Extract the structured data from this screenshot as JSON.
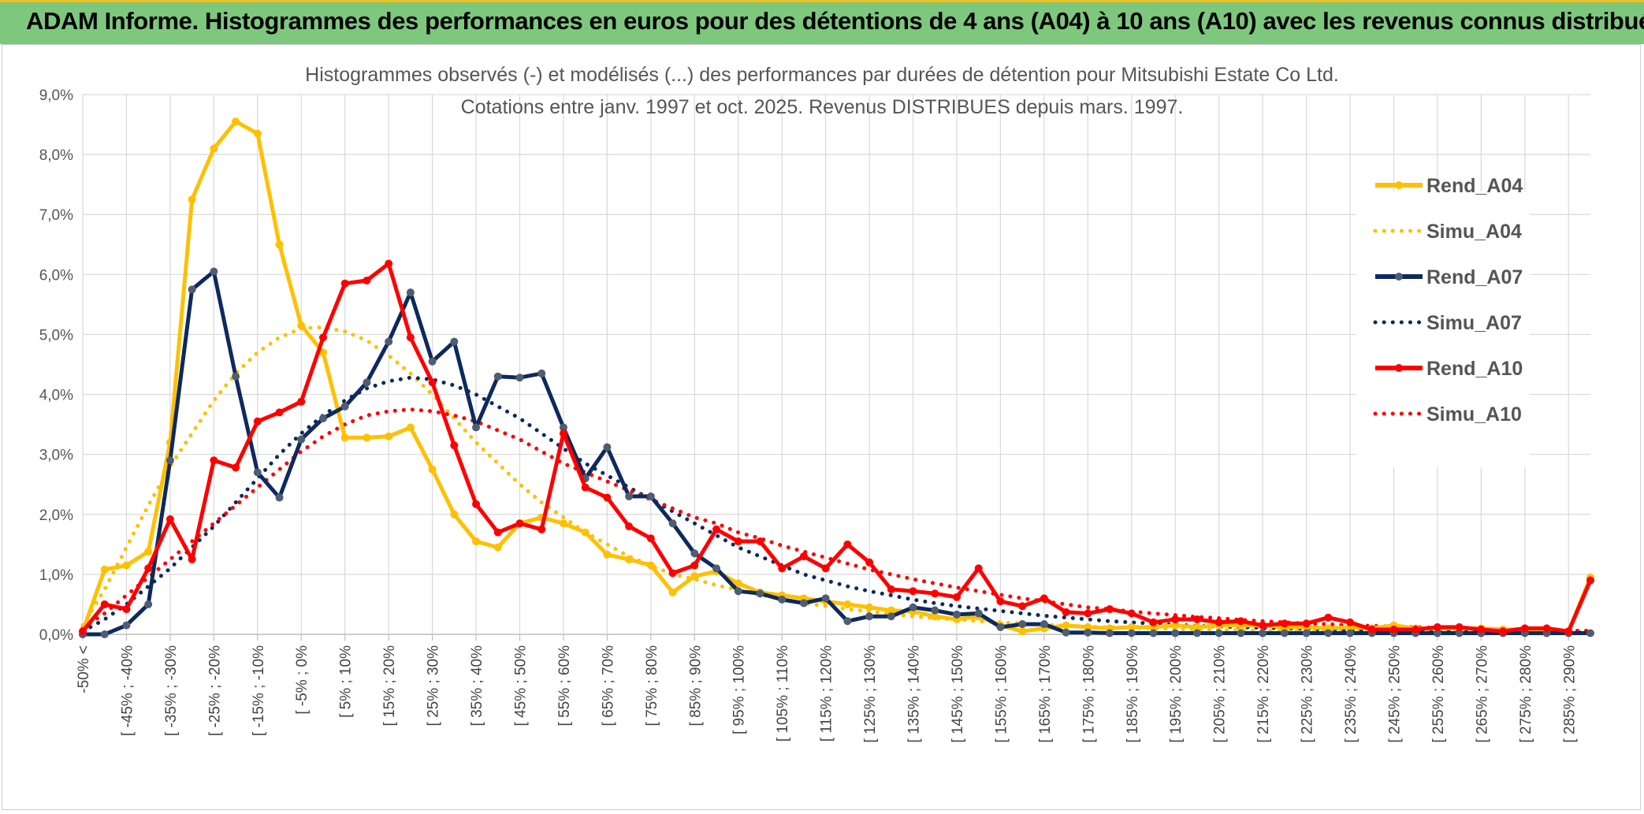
{
  "banner": {
    "title": "ADAM Informe. Histogrammes des performances en euros pour des détentions de 4 ans (A04) à 10 ans (A10) avec les revenus connus distribués"
  },
  "chart_data": {
    "type": "line",
    "title": "Histogrammes observés (-) et modélisés (...) des performances par durées de détention pour Mitsubishi Estate Co Ltd.",
    "subtitle": "Cotations entre janv. 1997 et oct. 2025. Revenus DISTRIBUES depuis mars. 1997.",
    "xlabel": "",
    "ylabel": "",
    "ylim": [
      0,
      9
    ],
    "y_ticks": [
      "0,0%",
      "1,0%",
      "2,0%",
      "3,0%",
      "4,0%",
      "5,0%",
      "6,0%",
      "7,0%",
      "8,0%",
      "9,0%"
    ],
    "x_labels": [
      "-50% <",
      "[ -45% ; -40%",
      "[ -35% ; -30%",
      "[ -25% ; -20%",
      "[ -15% ; -10%",
      "[ -5% ; 0%",
      "[ 5% ; 10%",
      "[ 15% ; 20%",
      "[ 25% ; 30%",
      "[ 35% ; 40%",
      "[ 45% ; 50%",
      "[ 55% ; 60%",
      "[ 65% ; 70%",
      "[ 75% ; 80%",
      "[ 85% ; 90%",
      "[ 95% ; 100%",
      "[ 105% ; 110%",
      "[ 115% ; 120%",
      "[ 125% ; 130%",
      "[ 135% ; 140%",
      "[ 145% ; 150%",
      "[ 155% ; 160%",
      "[ 165% ; 170%",
      "[ 175% ; 180%",
      "[ 185% ; 190%",
      "[ 195% ; 200%",
      "[ 205% ; 210%",
      "[ 215% ; 220%",
      "[ 225% ; 230%",
      "[ 235% ; 240%",
      "[ 245% ; 250%",
      "[ 255% ; 260%",
      "[ 265% ; 270%",
      "[ 275% ; 280%",
      "[ 285% ; 290%"
    ],
    "n_points": 70,
    "series": [
      {
        "name": "Rend_A04",
        "style": "solid",
        "color": "#ffc000",
        "values": [
          0.05,
          1.08,
          1.15,
          1.38,
          3.2,
          7.25,
          8.1,
          8.55,
          8.35,
          6.5,
          5.15,
          4.7,
          3.28,
          3.28,
          3.3,
          3.45,
          2.75,
          2.0,
          1.55,
          1.45,
          1.85,
          1.95,
          1.85,
          1.7,
          1.33,
          1.25,
          1.15,
          0.7,
          0.97,
          1.05,
          0.85,
          0.7,
          0.65,
          0.6,
          0.55,
          0.5,
          0.45,
          0.4,
          0.38,
          0.3,
          0.25,
          0.3,
          0.15,
          0.05,
          0.1,
          0.15,
          0.12,
          0.1,
          0.12,
          0.12,
          0.15,
          0.12,
          0.15,
          0.15,
          0.15,
          0.12,
          0.12,
          0.1,
          0.12,
          0.1,
          0.15,
          0.1,
          0.1,
          0.1,
          0.1,
          0.08,
          0.08,
          0.05,
          0.05,
          0.95
        ]
      },
      {
        "name": "Simu_A04",
        "style": "dotted",
        "color": "#ffc000",
        "values": [
          0.15,
          0.75,
          1.45,
          2.15,
          2.8,
          3.35,
          3.9,
          4.35,
          4.7,
          4.95,
          5.1,
          5.12,
          5.05,
          4.9,
          4.65,
          4.35,
          4.0,
          3.6,
          3.2,
          2.85,
          2.5,
          2.2,
          1.95,
          1.7,
          1.5,
          1.3,
          1.15,
          1.0,
          0.92,
          0.82,
          0.74,
          0.66,
          0.59,
          0.52,
          0.47,
          0.42,
          0.38,
          0.34,
          0.3,
          0.27,
          0.25,
          0.22,
          0.2,
          0.18,
          0.16,
          0.14,
          0.13,
          0.12,
          0.11,
          0.1,
          0.09,
          0.08,
          0.07,
          0.07,
          0.06,
          0.06,
          0.05,
          0.05,
          0.05,
          0.04,
          0.04,
          0.04,
          0.03,
          0.03,
          0.03,
          0.03,
          0.02,
          0.02,
          0.02,
          0.02
        ]
      },
      {
        "name": "Rend_A07",
        "style": "solid",
        "color": "#0d2a5e",
        "values": [
          0.0,
          0.0,
          0.15,
          0.5,
          2.9,
          5.75,
          6.05,
          4.3,
          2.7,
          2.28,
          3.25,
          3.6,
          3.8,
          4.2,
          4.88,
          5.7,
          4.55,
          4.88,
          3.45,
          4.3,
          4.28,
          4.35,
          3.45,
          2.6,
          3.12,
          2.3,
          2.3,
          1.85,
          1.35,
          1.1,
          0.72,
          0.68,
          0.58,
          0.52,
          0.6,
          0.22,
          0.3,
          0.3,
          0.45,
          0.4,
          0.33,
          0.35,
          0.12,
          0.17,
          0.17,
          0.03,
          0.03,
          0.02,
          0.02,
          0.02,
          0.02,
          0.02,
          0.02,
          0.02,
          0.02,
          0.02,
          0.02,
          0.02,
          0.02,
          0.02,
          0.02,
          0.02,
          0.02,
          0.02,
          0.02,
          0.02,
          0.02,
          0.02,
          0.02,
          0.02
        ]
      },
      {
        "name": "Simu_A07",
        "style": "dotted",
        "color": "#0d2a5e",
        "values": [
          0.05,
          0.25,
          0.5,
          0.8,
          1.1,
          1.45,
          1.8,
          2.2,
          2.6,
          3.0,
          3.35,
          3.65,
          3.9,
          4.1,
          4.22,
          4.28,
          4.25,
          4.15,
          4.0,
          3.8,
          3.6,
          3.35,
          3.1,
          2.85,
          2.65,
          2.45,
          2.25,
          2.05,
          1.85,
          1.65,
          1.45,
          1.3,
          1.15,
          1.0,
          0.9,
          0.8,
          0.72,
          0.65,
          0.58,
          0.52,
          0.47,
          0.43,
          0.39,
          0.35,
          0.31,
          0.28,
          0.25,
          0.22,
          0.2,
          0.18,
          0.16,
          0.14,
          0.13,
          0.12,
          0.11,
          0.1,
          0.09,
          0.08,
          0.07,
          0.07,
          0.06,
          0.06,
          0.05,
          0.05,
          0.04,
          0.04,
          0.04,
          0.03,
          0.03,
          0.03
        ]
      },
      {
        "name": "Rend_A10",
        "style": "solid",
        "color": "#ff0000",
        "values": [
          0.05,
          0.5,
          0.42,
          1.1,
          1.92,
          1.25,
          2.9,
          2.78,
          3.55,
          3.7,
          3.88,
          4.95,
          5.85,
          5.9,
          6.18,
          4.95,
          4.2,
          3.15,
          2.17,
          1.7,
          1.85,
          1.75,
          3.35,
          2.45,
          2.28,
          1.8,
          1.6,
          1.02,
          1.15,
          1.75,
          1.55,
          1.55,
          1.1,
          1.3,
          1.1,
          1.5,
          1.2,
          0.75,
          0.72,
          0.68,
          0.62,
          1.1,
          0.55,
          0.47,
          0.6,
          0.37,
          0.35,
          0.42,
          0.35,
          0.2,
          0.25,
          0.25,
          0.2,
          0.22,
          0.15,
          0.18,
          0.18,
          0.28,
          0.2,
          0.08,
          0.08,
          0.08,
          0.12,
          0.12,
          0.08,
          0.05,
          0.1,
          0.1,
          0.05,
          0.9
        ]
      },
      {
        "name": "Simu_A10",
        "style": "dotted",
        "color": "#ff0000",
        "values": [
          0.1,
          0.35,
          0.65,
          0.95,
          1.25,
          1.55,
          1.85,
          2.15,
          2.45,
          2.75,
          3.05,
          3.3,
          3.5,
          3.65,
          3.72,
          3.75,
          3.72,
          3.65,
          3.55,
          3.4,
          3.25,
          3.05,
          2.85,
          2.7,
          2.55,
          2.4,
          2.25,
          2.1,
          1.95,
          1.85,
          1.7,
          1.6,
          1.48,
          1.38,
          1.28,
          1.18,
          1.08,
          1.0,
          0.92,
          0.85,
          0.78,
          0.72,
          0.66,
          0.6,
          0.55,
          0.5,
          0.45,
          0.42,
          0.38,
          0.35,
          0.32,
          0.29,
          0.27,
          0.24,
          0.22,
          0.2,
          0.18,
          0.17,
          0.15,
          0.14,
          0.13,
          0.12,
          0.11,
          0.1,
          0.09,
          0.08,
          0.08,
          0.07,
          0.06,
          0.06
        ]
      }
    ],
    "legend": [
      "Rend_A04",
      "Simu_A04",
      "Rend_A07",
      "Simu_A07",
      "Rend_A10",
      "Simu_A10"
    ],
    "legend_position": "right",
    "grid": true
  }
}
